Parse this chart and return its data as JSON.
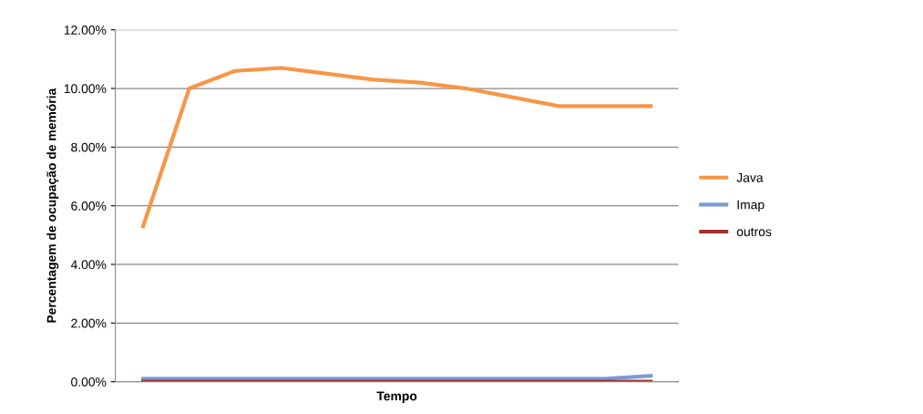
{
  "chart_data": {
    "type": "line",
    "xlabel": "Tempo",
    "ylabel": "Percentagem de ocupação de memória",
    "categories": [
      null,
      null,
      null,
      null,
      null,
      null,
      null,
      null,
      null,
      null,
      null,
      null
    ],
    "series": [
      {
        "name": "Java",
        "color": "#f79646",
        "values": [
          5.3,
          10.0,
          10.6,
          10.7,
          10.5,
          10.3,
          10.2,
          10.0,
          9.7,
          9.4,
          9.4,
          9.4
        ]
      },
      {
        "name": "Imap",
        "color": "#7b9ad8",
        "values": [
          0.1,
          0.1,
          0.1,
          0.1,
          0.1,
          0.1,
          0.1,
          0.1,
          0.1,
          0.1,
          0.1,
          0.2
        ]
      },
      {
        "name": "outros",
        "color": "#a0302a",
        "values": [
          0,
          0,
          0,
          0,
          0,
          0,
          0,
          0,
          0,
          0,
          0,
          0
        ]
      }
    ],
    "ylim": [
      0,
      12
    ],
    "yticks": [
      {
        "value": 0,
        "label": "0.00%"
      },
      {
        "value": 2,
        "label": "2.00%"
      },
      {
        "value": 4,
        "label": "4.00%"
      },
      {
        "value": 6,
        "label": "6.00%"
      },
      {
        "value": 8,
        "label": "8.00%"
      },
      {
        "value": 10,
        "label": "10.00%"
      },
      {
        "value": 12,
        "label": "12.00%"
      }
    ],
    "grid": "y",
    "legend": "right",
    "marker": "none",
    "line_style": "solid"
  }
}
